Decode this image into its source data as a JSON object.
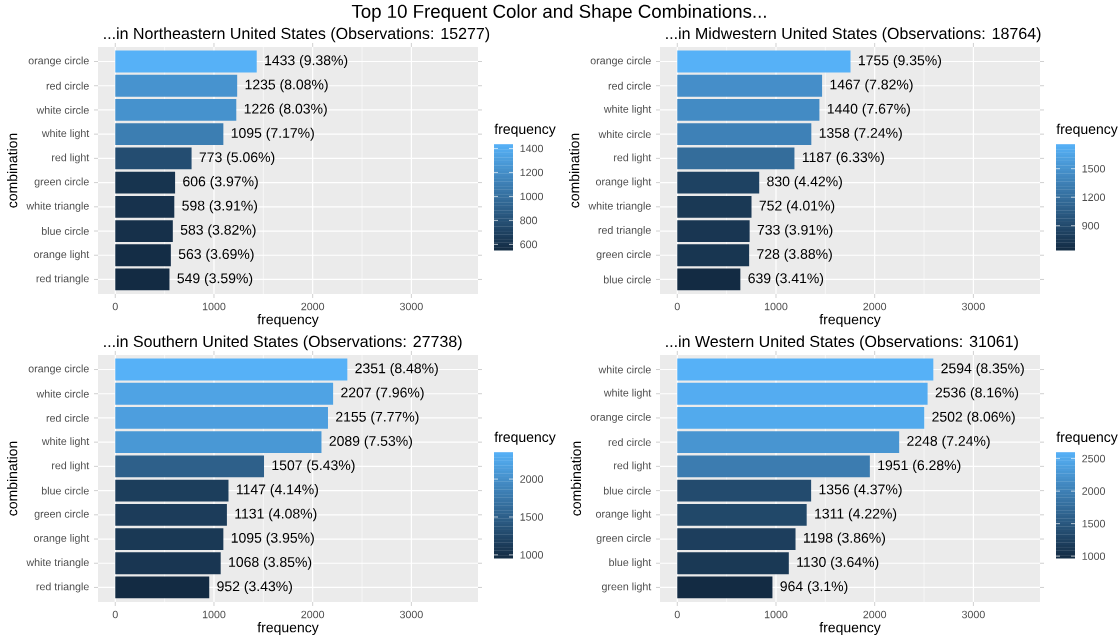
{
  "chart_data": [
    {
      "type": "bar",
      "orientation": "horizontal",
      "title": "...in Northeastern United States (Observations: 15277)",
      "annotations": [
        "Top 10 Frequent Color and Shape Combinations..."
      ],
      "xlabel": "frequency",
      "ylabel": "combination",
      "clabel": "frequency",
      "categories": [
        "orange circle",
        "red circle",
        "white circle",
        "white light",
        "red light",
        "green circle",
        "white triangle",
        "blue circle",
        "orange light",
        "red triangle"
      ],
      "values": [
        1433,
        1235,
        1226,
        1095,
        773,
        606,
        598,
        583,
        563,
        549
      ],
      "value_labels": [
        "1433 (9.38%)",
        "1235 (8.08%)",
        "1226 (8.03%)",
        "1095 (7.17%)",
        "773 (5.06%)",
        "606 (3.97%)",
        "598 (3.91%)",
        "583 (3.82%)",
        "563 (3.69%)",
        "549 (3.59%)"
      ],
      "colors": [
        "#56B1F7",
        "#4793CF",
        "#4692CD",
        "#3C7EB2",
        "#244D71",
        "#17344F",
        "#17324D",
        "#16304A",
        "#142D46",
        "#132B43"
      ],
      "clim": [
        549,
        1433
      ],
      "cticks": [
        600,
        800,
        1000,
        1200,
        1400
      ],
      "xlim": [
        -175,
        3675
      ],
      "xticks": [
        0,
        1000,
        2000,
        3000
      ],
      "grid": true
    },
    {
      "type": "bar",
      "orientation": "horizontal",
      "title": "...in Midwestern United States (Observations: 18764)",
      "xlabel": "frequency",
      "ylabel": "combination",
      "clabel": "frequency",
      "categories": [
        "orange circle",
        "red circle",
        "white light",
        "white circle",
        "red light",
        "orange light",
        "white triangle",
        "red triangle",
        "green circle",
        "blue circle"
      ],
      "values": [
        1755,
        1467,
        1440,
        1358,
        1187,
        830,
        752,
        733,
        728,
        639
      ],
      "value_labels": [
        "1755 (9.35%)",
        "1467 (7.82%)",
        "1440 (7.67%)",
        "1358 (7.24%)",
        "1187 (6.33%)",
        "830 (4.42%)",
        "752 (4.01%)",
        "733 (3.91%)",
        "728 (3.88%)",
        "639 (3.41%)"
      ],
      "colors": [
        "#56B1F7",
        "#458EC9",
        "#438BC4",
        "#3E81B7",
        "#346D9B",
        "#1E4262",
        "#1A3955",
        "#193652",
        "#183651",
        "#132B43"
      ],
      "clim": [
        639,
        1755
      ],
      "cticks": [
        900,
        1200,
        1500
      ],
      "xlim": [
        -175,
        3675
      ],
      "xticks": [
        0,
        1000,
        2000,
        3000
      ],
      "grid": true
    },
    {
      "type": "bar",
      "orientation": "horizontal",
      "title": "...in Southern United States (Observations: 27738)",
      "xlabel": "frequency",
      "ylabel": "combination",
      "clabel": "frequency",
      "categories": [
        "orange circle",
        "white circle",
        "red circle",
        "white light",
        "red light",
        "blue circle",
        "green circle",
        "orange light",
        "white triangle",
        "red triangle"
      ],
      "values": [
        2351,
        2207,
        2155,
        2089,
        1507,
        1147,
        1131,
        1095,
        1068,
        952
      ],
      "value_labels": [
        "2351 (8.48%)",
        "2207 (7.96%)",
        "2155 (7.77%)",
        "2089 (7.53%)",
        "1507 (5.43%)",
        "1147 (4.14%)",
        "1131 (4.08%)",
        "1095 (3.95%)",
        "1068 (3.85%)",
        "952 (3.43%)"
      ],
      "colors": [
        "#56B1F7",
        "#4FA3E4",
        "#4D9EDE",
        "#4998D5",
        "#2E608A",
        "#1C3E5C",
        "#1C3C5A",
        "#1A3955",
        "#193652",
        "#132B43"
      ],
      "clim": [
        952,
        2351
      ],
      "cticks": [
        1000,
        1500,
        2000
      ],
      "xlim": [
        -175,
        3675
      ],
      "xticks": [
        0,
        1000,
        2000,
        3000
      ],
      "grid": true
    },
    {
      "type": "bar",
      "orientation": "horizontal",
      "title": "...in Western United States (Observations: 31061)",
      "xlabel": "frequency",
      "ylabel": "combination",
      "clabel": "frequency",
      "categories": [
        "white circle",
        "white light",
        "orange circle",
        "red circle",
        "red light",
        "blue circle",
        "orange light",
        "green circle",
        "blue light",
        "green light"
      ],
      "values": [
        2594,
        2536,
        2502,
        2248,
        1951,
        1356,
        1311,
        1198,
        1130,
        964
      ],
      "value_labels": [
        "2594 (8.35%)",
        "2536 (8.16%)",
        "2502 (8.06%)",
        "2248 (7.24%)",
        "1951 (6.28%)",
        "1356 (4.37%)",
        "1311 (4.22%)",
        "1198 (3.86%)",
        "1130 (3.64%)",
        "964 (3.1%)"
      ],
      "colors": [
        "#56B1F7",
        "#54ACF1",
        "#52AAED",
        "#4895D1",
        "#3C7CB0",
        "#234B6E",
        "#214869",
        "#1D3E5D",
        "#1A3955",
        "#132B43"
      ],
      "clim": [
        964,
        2594
      ],
      "cticks": [
        1000,
        1500,
        2000,
        2500
      ],
      "xlim": [
        -175,
        3675
      ],
      "xticks": [
        0,
        1000,
        2000,
        3000
      ],
      "grid": true
    }
  ]
}
